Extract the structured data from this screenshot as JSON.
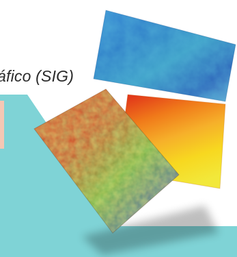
{
  "title": "áfico (SIG)",
  "colors": {
    "teal_background": "#7fd3d6",
    "pink_box": "#f5c7b4",
    "text": "#2a2a2a"
  },
  "illustration": {
    "layers": [
      "blue-terrain-layer",
      "heat-gradient-layer",
      "vegetation-map-layer"
    ]
  }
}
